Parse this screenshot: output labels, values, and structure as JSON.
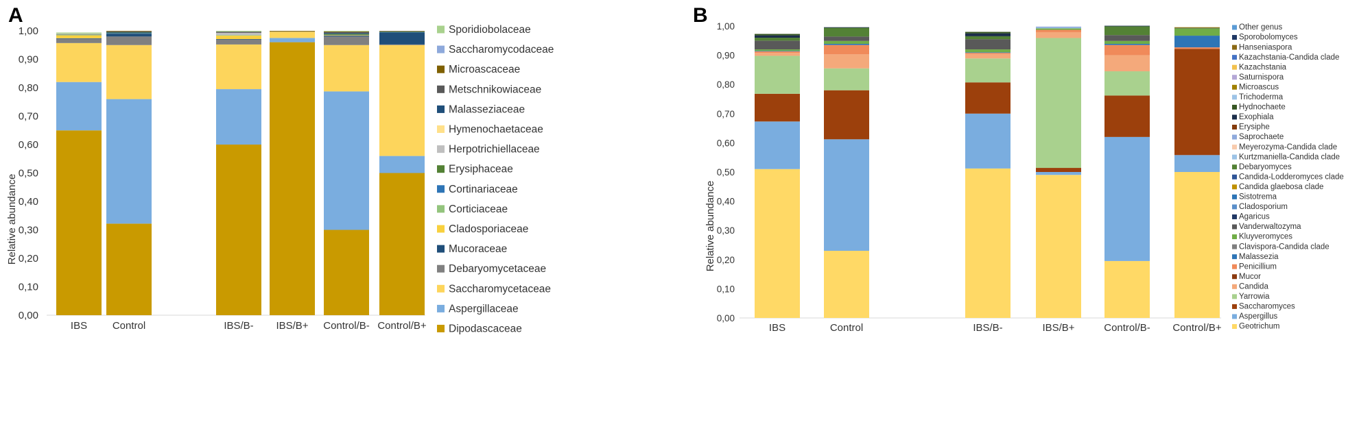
{
  "chart_data": [
    {
      "panel": "A",
      "type": "bar",
      "stacked": true,
      "ylabel": "Relative abundance",
      "ylim": [
        0,
        1
      ],
      "yticks": [
        "0,00",
        "0,10",
        "0,20",
        "0,30",
        "0,40",
        "0,50",
        "0,60",
        "0,70",
        "0,80",
        "0,90",
        "1,00"
      ],
      "categories": [
        "IBS",
        "Control",
        "IBS/B-",
        "IBS/B+",
        "Control/B-",
        "Control/B+"
      ],
      "legend_position": "right",
      "series": [
        {
          "name": "Dipodascaceae",
          "color": "#C99A00",
          "values": [
            0.65,
            0.322,
            0.6,
            0.96,
            0.3,
            0.5
          ]
        },
        {
          "name": "Aspergillaceae",
          "color": "#7AADDF",
          "values": [
            0.17,
            0.438,
            0.195,
            0.015,
            0.487,
            0.06
          ]
        },
        {
          "name": "Saccharomycetaceae",
          "color": "#FDD55C",
          "values": [
            0.137,
            0.19,
            0.157,
            0.022,
            0.163,
            0.39
          ]
        },
        {
          "name": "Debaryomycetaceae",
          "color": "#808080",
          "values": [
            0.015,
            0.03,
            0.017,
            0,
            0.03,
            0.002
          ]
        },
        {
          "name": "Mucoraceae",
          "color": "#1F4E79",
          "values": [
            0.002,
            0.01,
            0.002,
            0,
            0.003,
            0.042
          ]
        },
        {
          "name": "Cladosporiaceae",
          "color": "#F8D03E",
          "values": [
            0.01,
            0,
            0.012,
            0,
            0.002,
            0
          ]
        },
        {
          "name": "Corticiaceae",
          "color": "#93C47D",
          "values": [
            0.001,
            0,
            0.002,
            0,
            0,
            0
          ]
        },
        {
          "name": "Cortinariaceae",
          "color": "#2E75B6",
          "values": [
            0,
            0.002,
            0,
            0,
            0.001,
            0.001
          ]
        },
        {
          "name": "Erysiphaceae",
          "color": "#538135",
          "values": [
            0.002,
            0.002,
            0,
            0,
            0.003,
            0.002
          ]
        },
        {
          "name": "Herpotrichiellaceae",
          "color": "#BFBFBF",
          "values": [
            0.003,
            0,
            0.008,
            0,
            0,
            0
          ]
        },
        {
          "name": "Hymenochaetaceae",
          "color": "#FFE08A",
          "values": [
            0,
            0,
            0,
            0,
            0,
            0
          ]
        },
        {
          "name": "Malasseziaceae",
          "color": "#1F4E79",
          "values": [
            0,
            0.002,
            0,
            0,
            0.003,
            0.001
          ]
        },
        {
          "name": "Metschnikowiaceae",
          "color": "#595959",
          "values": [
            0,
            0.002,
            0.004,
            0.001,
            0.004,
            0.001
          ]
        },
        {
          "name": "Microascaceae",
          "color": "#7F6000",
          "values": [
            0,
            0.002,
            0,
            0.002,
            0.002,
            0.001
          ]
        },
        {
          "name": "Saccharomycodaceae",
          "color": "#8EA9DB",
          "values": [
            0,
            0,
            0,
            0,
            0,
            0
          ]
        },
        {
          "name": "Sporidiobolaceae",
          "color": "#A9D18E",
          "values": [
            0.004,
            0,
            0.003,
            0,
            0.002,
            0
          ]
        }
      ]
    },
    {
      "panel": "B",
      "type": "bar",
      "stacked": true,
      "ylabel": "Relative abundance",
      "ylim": [
        0,
        1
      ],
      "yticks": [
        "0,00",
        "0,10",
        "0,20",
        "0,30",
        "0,40",
        "0,50",
        "0,60",
        "0,70",
        "0,80",
        "0,90",
        "1,00"
      ],
      "categories": [
        "IBS",
        "Control",
        "IBS/B-",
        "IBS/B+",
        "Control/B-",
        "Control/B+"
      ],
      "legend_position": "right",
      "series": [
        {
          "name": "Geotrichum",
          "color": "#FFD966",
          "values": [
            0.51,
            0.23,
            0.512,
            0.49,
            0.195,
            0.5
          ]
        },
        {
          "name": "Aspergillus",
          "color": "#7AADDF",
          "values": [
            0.163,
            0.382,
            0.188,
            0.01,
            0.425,
            0.058
          ]
        },
        {
          "name": "Saccharomyces",
          "color": "#9C400C",
          "values": [
            0.095,
            0.168,
            0.107,
            0.014,
            0.142,
            0.364
          ]
        },
        {
          "name": "Yarrowia",
          "color": "#A9D18E",
          "values": [
            0.13,
            0.075,
            0.082,
            0.445,
            0.083,
            0
          ]
        },
        {
          "name": "Candida",
          "color": "#F4A97B",
          "values": [
            0.01,
            0.048,
            0.015,
            0.02,
            0.055,
            0
          ]
        },
        {
          "name": "Mucor",
          "color": "#8B3A0F",
          "values": [
            0,
            0,
            0,
            0,
            0,
            0
          ]
        },
        {
          "name": "Penicillium",
          "color": "#F08A5A",
          "values": [
            0.005,
            0.032,
            0.004,
            0.008,
            0.035,
            0.005
          ]
        },
        {
          "name": "Malassezia",
          "color": "#2E75B6",
          "values": [
            0.002,
            0.004,
            0.002,
            0,
            0.004,
            0.04
          ]
        },
        {
          "name": "Clavispora-Candida clade",
          "color": "#7F7F7F",
          "values": [
            0,
            0,
            0,
            0,
            0,
            0
          ]
        },
        {
          "name": "Kluyveromyces",
          "color": "#70AD47",
          "values": [
            0.005,
            0.01,
            0.01,
            0.005,
            0.01,
            0.025
          ]
        },
        {
          "name": "Vanderwaltozyma",
          "color": "#595959",
          "values": [
            0.03,
            0.015,
            0.035,
            0,
            0.02,
            0.002
          ]
        },
        {
          "name": "Agaricus",
          "color": "#203864",
          "values": [
            0,
            0,
            0,
            0,
            0,
            0
          ]
        },
        {
          "name": "Cladosporium",
          "color": "#5B8FC9",
          "values": [
            0,
            0,
            0,
            0,
            0,
            0
          ]
        },
        {
          "name": "Sistotrema",
          "color": "#2E75B6",
          "values": [
            0,
            0,
            0,
            0,
            0,
            0
          ]
        },
        {
          "name": "Candida glaebosa clade",
          "color": "#BF9000",
          "values": [
            0,
            0,
            0,
            0,
            0,
            0
          ]
        },
        {
          "name": "Candida-Lodderomyces clade",
          "color": "#2F5597",
          "values": [
            0,
            0,
            0,
            0,
            0,
            0
          ]
        },
        {
          "name": "Debaryomyces",
          "color": "#538135",
          "values": [
            0.01,
            0.03,
            0.01,
            0,
            0.03,
            0
          ]
        },
        {
          "name": "Kurtzmaniella-Candida clade",
          "color": "#9DC3E6",
          "values": [
            0,
            0,
            0,
            0.002,
            0,
            0
          ]
        },
        {
          "name": "Meyerozyma-Candida clade",
          "color": "#F8CBAD",
          "values": [
            0,
            0,
            0,
            0,
            0,
            0
          ]
        },
        {
          "name": "Saprochaete",
          "color": "#8FAADC",
          "values": [
            0,
            0,
            0,
            0.004,
            0,
            0
          ]
        },
        {
          "name": "Erysiphe",
          "color": "#843C0C",
          "values": [
            0,
            0,
            0,
            0,
            0,
            0
          ]
        },
        {
          "name": "Exophiala",
          "color": "#1C2E4A",
          "values": [
            0.008,
            0.002,
            0.01,
            0,
            0.002,
            0
          ]
        },
        {
          "name": "Hydnochaete",
          "color": "#375623",
          "values": [
            0.005,
            0,
            0.005,
            0,
            0,
            0
          ]
        },
        {
          "name": "Trichoderma",
          "color": "#9DC3E6",
          "values": [
            0,
            0,
            0,
            0,
            0,
            0
          ]
        },
        {
          "name": "Microascus",
          "color": "#A08000",
          "values": [
            0,
            0,
            0,
            0,
            0,
            0.002
          ]
        },
        {
          "name": "Saturnispora",
          "color": "#B4A7D6",
          "values": [
            0,
            0,
            0,
            0,
            0,
            0
          ]
        },
        {
          "name": "Kazachstania",
          "color": "#F2C14E",
          "values": [
            0,
            0,
            0,
            0,
            0,
            0
          ]
        },
        {
          "name": "Kazachstania-Candida clade",
          "color": "#4472C4",
          "values": [
            0,
            0,
            0,
            0,
            0,
            0
          ]
        },
        {
          "name": "Hanseniaspora",
          "color": "#8B6914",
          "values": [
            0,
            0,
            0,
            0,
            0,
            0
          ]
        },
        {
          "name": "Sporobolomyces",
          "color": "#1F3864",
          "values": [
            0,
            0,
            0,
            0,
            0,
            0
          ]
        },
        {
          "name": "Other genus",
          "color": "#5B9BD5",
          "values": [
            0,
            0,
            0,
            0,
            0,
            0
          ]
        }
      ]
    }
  ]
}
